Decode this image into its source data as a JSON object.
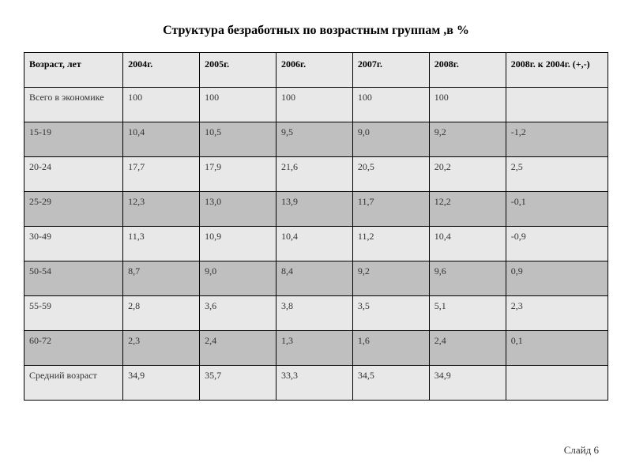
{
  "title": "Структура безработных по возрастным группам ,в %",
  "columns": [
    "Возраст, лет",
    "2004г.",
    "2005г.",
    "2006г.",
    "2007г.",
    "2008г.",
    "2008г. к 2004г. (+,-)"
  ],
  "rows": [
    {
      "shade": "light",
      "cells": [
        "Всего в экономике",
        "100",
        "100",
        "100",
        "100",
        "100",
        ""
      ]
    },
    {
      "shade": "dark",
      "cells": [
        "15-19",
        "10,4",
        "10,5",
        "9,5",
        "9,0",
        "9,2",
        "-1,2"
      ]
    },
    {
      "shade": "light",
      "cells": [
        "20-24",
        "17,7",
        "17,9",
        "21,6",
        "20,5",
        "20,2",
        "2,5"
      ]
    },
    {
      "shade": "dark",
      "cells": [
        "25-29",
        "12,3",
        "13,0",
        "13,9",
        "11,7",
        "12,2",
        "-0,1"
      ]
    },
    {
      "shade": "light",
      "cells": [
        "30-49",
        "11,3",
        "10,9",
        "10,4",
        "11,2",
        "10,4",
        "-0,9"
      ]
    },
    {
      "shade": "dark",
      "cells": [
        "50-54",
        "8,7",
        "9,0",
        "8,4",
        "9,2",
        "9,6",
        "0,9"
      ]
    },
    {
      "shade": "light",
      "cells": [
        "55-59",
        "2,8",
        "3,6",
        "3,8",
        "3,5",
        "5,1",
        "2,3"
      ]
    },
    {
      "shade": "dark",
      "cells": [
        "60-72",
        "2,3",
        "2,4",
        "1,3",
        "1,6",
        "2,4",
        "0,1"
      ]
    },
    {
      "shade": "light",
      "cells": [
        "Средний возраст",
        "34,9",
        "35,7",
        "33,3",
        "34,5",
        "34,9",
        ""
      ]
    }
  ],
  "footer": "Слайд 6"
}
